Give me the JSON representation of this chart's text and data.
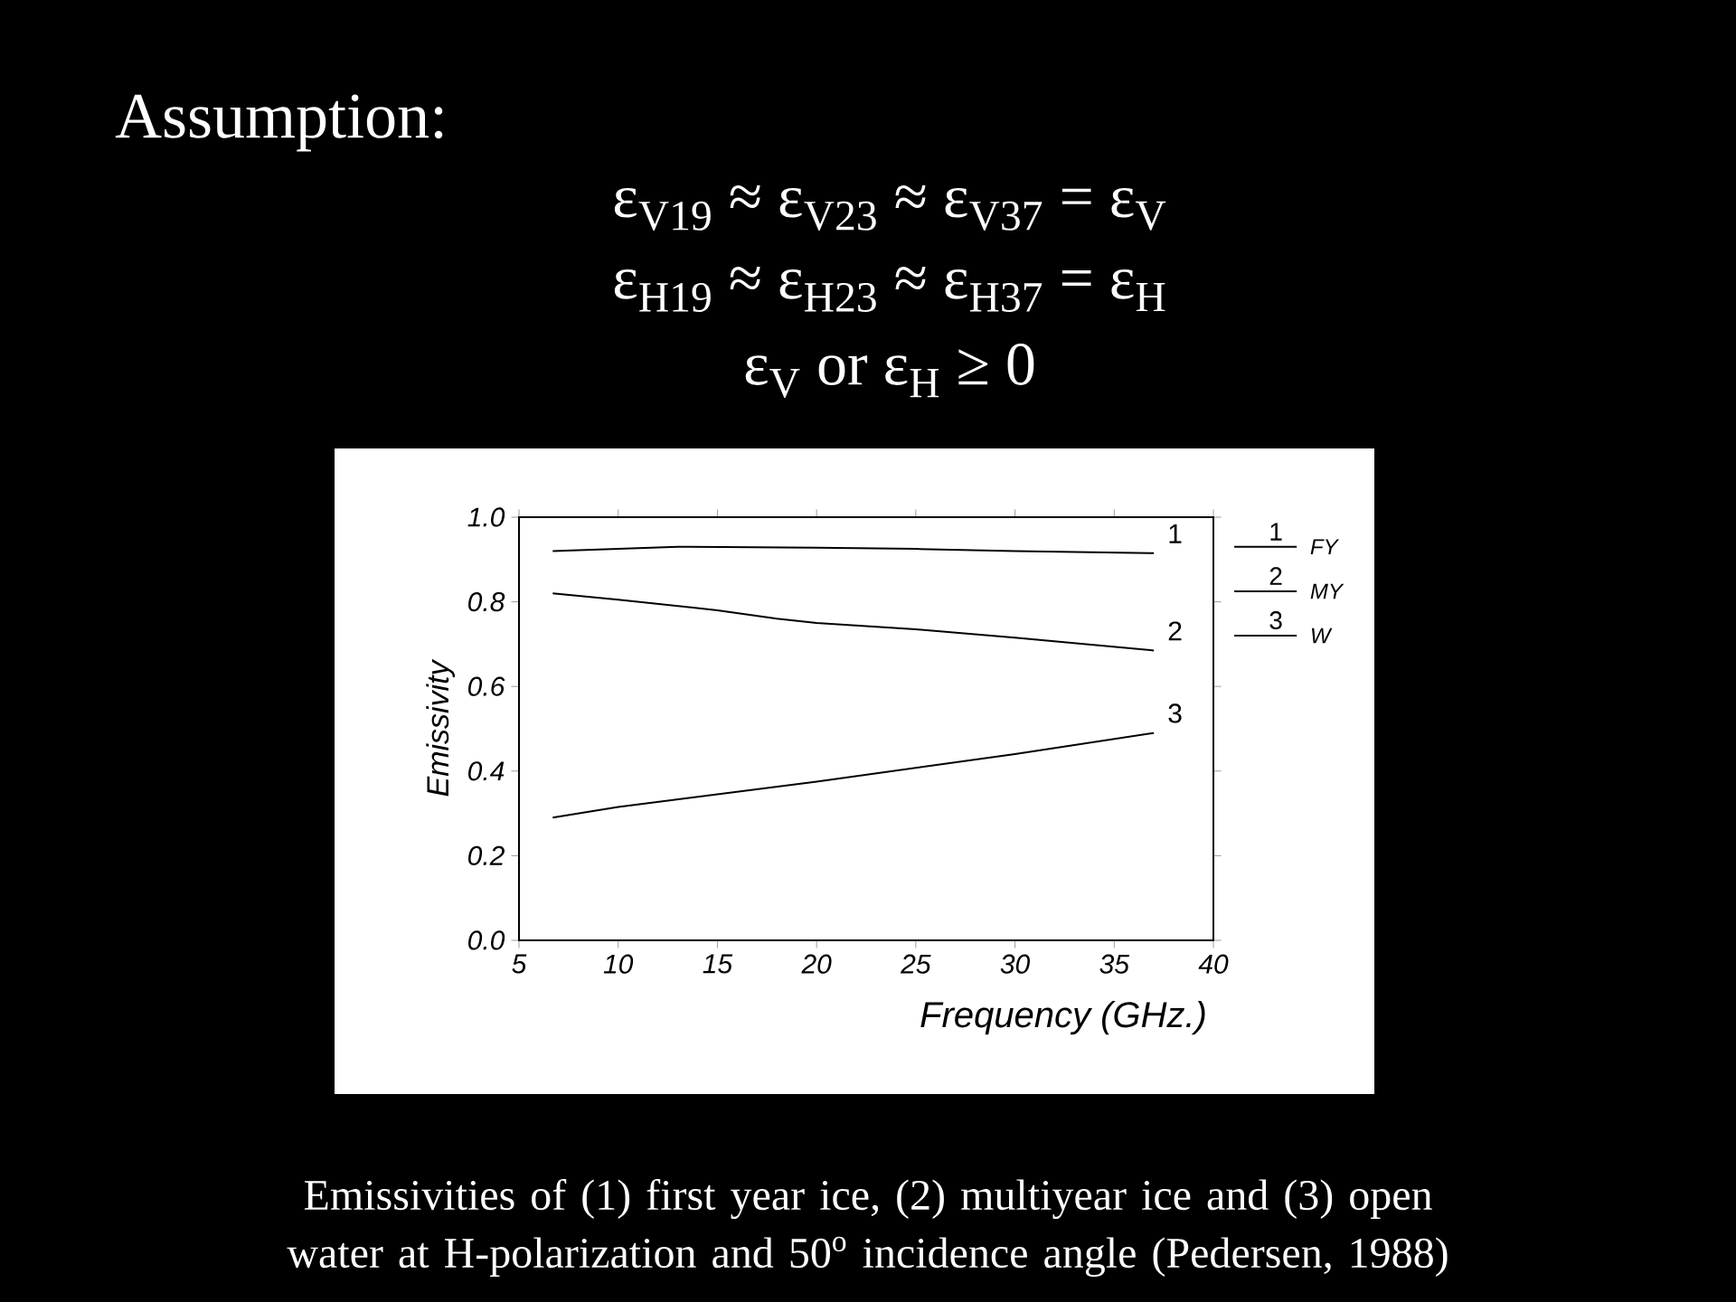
{
  "chart_data": {
    "type": "line",
    "title": "Assumption:",
    "xlabel": "Frequency (GHz.)",
    "ylabel": "Emissivity",
    "x": [
      6.7,
      10,
      13,
      20,
      25,
      30,
      37
    ],
    "series": [
      {
        "name": "FY",
        "color": "#000000",
        "values": [
          0.92,
          0.925,
          0.93,
          0.928,
          0.925,
          0.92,
          0.915
        ]
      },
      {
        "name": "MY",
        "color": "#000000",
        "x": [
          6.7,
          10,
          15,
          18,
          20,
          25,
          30,
          37
        ],
        "values": [
          0.82,
          0.805,
          0.78,
          0.76,
          0.75,
          0.735,
          0.715,
          0.685
        ]
      },
      {
        "name": "W",
        "color": "#000000",
        "x": [
          6.7,
          10,
          20,
          30,
          37
        ],
        "values": [
          0.29,
          0.315,
          0.375,
          0.44,
          0.49
        ]
      }
    ],
    "xlim": [
      5,
      40
    ],
    "ylim": [
      0,
      1
    ],
    "xticks": [
      5,
      10,
      15,
      20,
      25,
      30,
      35,
      40
    ],
    "yticks": [
      {
        "value": 0,
        "label": "0.0"
      },
      {
        "value": 0.2,
        "label": "0.2"
      },
      {
        "value": 0.4,
        "label": "0.4"
      },
      {
        "value": 0.6,
        "label": "0.6"
      },
      {
        "value": 0.8,
        "label": "0.8"
      },
      {
        "value": 1,
        "label": "1.0"
      }
    ],
    "legend": "right",
    "annotations": [
      "ε$_{V19}$ ≈ ε$_{V23}$ ≈ ε$_{V37}$ = ε$_{V}$",
      "ε$_{H19}$ ≈ ε$_{H23}$ ≈ ε$_{H37}$ = ε$_{H}$",
      "ε$_{V}$ or ε$_{H}$ ≥ 0",
      "Emissivities of (1) first year ice, (2) multiyear ice and (3) open water at H-polarization and 50$^{o}$ incidence angle (Pedersen, 1988)",
      "1",
      "2",
      "3",
      "1",
      "2",
      "3"
    ]
  }
}
